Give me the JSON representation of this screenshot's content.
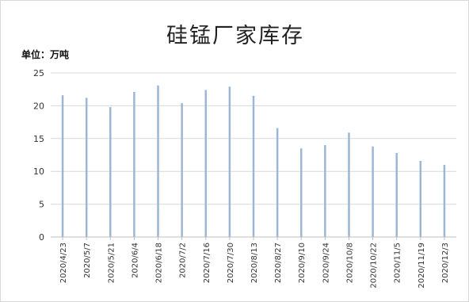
{
  "chart_data": {
    "type": "bar",
    "title": "硅锰厂家库存",
    "unit_label": "单位：万吨",
    "categories": [
      "2020/4/23",
      "2020/5/7",
      "2020/5/21",
      "2020/6/4",
      "2020/6/18",
      "2020/7/2",
      "2020/7/16",
      "2020/7/30",
      "2020/8/13",
      "2020/8/27",
      "2020/9/10",
      "2020/9/24",
      "2020/10/8",
      "2020/10/22",
      "2020/11/5",
      "2020/11/19",
      "2020/12/3"
    ],
    "values": [
      21.6,
      21.2,
      19.8,
      22.1,
      23.1,
      20.4,
      22.4,
      22.9,
      21.5,
      16.6,
      13.5,
      14.0,
      15.9,
      13.8,
      12.8,
      11.6,
      11.0
    ],
    "yticks": [
      "0",
      "5",
      "10",
      "15",
      "20",
      "25"
    ],
    "ylim": [
      0,
      25
    ],
    "grid": true,
    "bar_color": "#9db6d6",
    "grid_color": "#d9d9d9"
  }
}
